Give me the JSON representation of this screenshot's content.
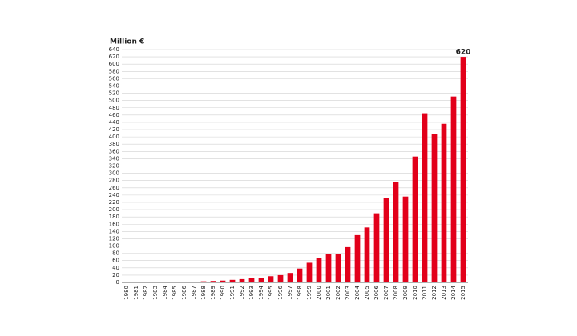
{
  "chart_data": {
    "type": "bar",
    "ylabel": "Million €",
    "categories": [
      "1980",
      "1981",
      "1982",
      "1983",
      "1984",
      "1985",
      "1986",
      "1987",
      "1988",
      "1989",
      "1990",
      "1991",
      "1992",
      "1993",
      "1994",
      "1995",
      "1996",
      "1997",
      "1998",
      "1999",
      "2000",
      "2001",
      "2002",
      "2003",
      "2004",
      "2005",
      "2006",
      "2007",
      "2008",
      "2009",
      "2010",
      "2011",
      "2012",
      "2013",
      "2014",
      "2015"
    ],
    "values": [
      0,
      0,
      0.5,
      1,
      1,
      1.5,
      2,
      2,
      3,
      4,
      5,
      7,
      9,
      11,
      13,
      17,
      20,
      26,
      38,
      54,
      66,
      77,
      77,
      97,
      130,
      151,
      190,
      232,
      277,
      236,
      346,
      465,
      407,
      436,
      511,
      620
    ],
    "value_labels": [
      null,
      null,
      null,
      null,
      null,
      null,
      null,
      null,
      null,
      null,
      null,
      null,
      null,
      null,
      null,
      null,
      null,
      null,
      null,
      null,
      null,
      null,
      null,
      null,
      null,
      null,
      null,
      null,
      null,
      null,
      null,
      null,
      null,
      null,
      null,
      "620"
    ],
    "color": "#e2001a",
    "ylim": [
      0,
      640
    ],
    "yticks": [
      0,
      20,
      40,
      60,
      80,
      100,
      120,
      140,
      160,
      180,
      200,
      220,
      240,
      260,
      280,
      300,
      320,
      340,
      360,
      380,
      400,
      420,
      440,
      460,
      480,
      500,
      520,
      540,
      560,
      580,
      600,
      620,
      640
    ],
    "grid": true
  }
}
